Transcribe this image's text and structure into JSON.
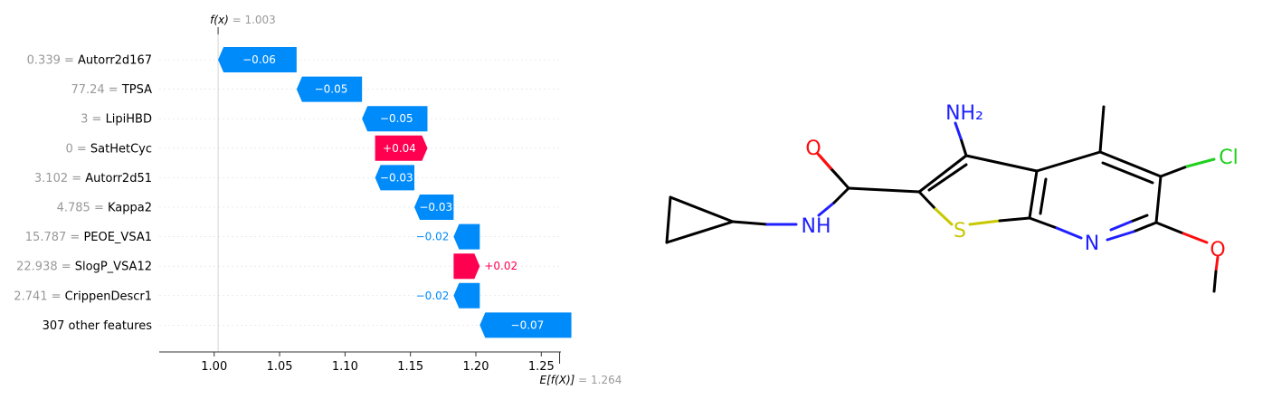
{
  "chart_data": {
    "type": "waterfall",
    "title": "",
    "fx_label": "f(x)",
    "fx_value": "1.003",
    "fx_full": "f(x) = 1.003",
    "base_label": "E[f(X)]",
    "base_value": "1.264",
    "base_full": "E[f(X)] = 1.264",
    "fx": 1.003,
    "base": 1.264,
    "xlim": [
      0.958,
      1.265
    ],
    "xticks": [
      1.0,
      1.05,
      1.1,
      1.15,
      1.2,
      1.25
    ],
    "xtick_labels": [
      "1.00",
      "1.05",
      "1.10",
      "1.15",
      "1.20",
      "1.25"
    ],
    "features": [
      {
        "value": "0.339",
        "name": "Autorr2d167",
        "row_label": "0.339 = Autorr2d167",
        "shap": -0.06,
        "label": "−0.06"
      },
      {
        "value": "77.24",
        "name": "TPSA",
        "row_label": "77.24 = TPSA",
        "shap": -0.05,
        "label": "−0.05"
      },
      {
        "value": "3",
        "name": "LipiHBD",
        "row_label": "3 = LipiHBD",
        "shap": -0.05,
        "label": "−0.05"
      },
      {
        "value": "0",
        "name": "SatHetCyc",
        "row_label": "0 = SatHetCyc",
        "shap": 0.04,
        "label": "+0.04"
      },
      {
        "value": "3.102",
        "name": "Autorr2d51",
        "row_label": "3.102 = Autorr2d51",
        "shap": -0.03,
        "label": "−0.03"
      },
      {
        "value": "4.785",
        "name": "Kappa2",
        "row_label": "4.785 = Kappa2",
        "shap": -0.03,
        "label": "−0.03"
      },
      {
        "value": "15.787",
        "name": "PEOE_VSA1",
        "row_label": "15.787 = PEOE_VSA1",
        "shap": -0.02,
        "label": "−0.02"
      },
      {
        "value": "22.938",
        "name": "SlogP_VSA12",
        "row_label": "22.938 = SlogP_VSA12",
        "shap": 0.02,
        "label": "+0.02"
      },
      {
        "value": "2.741",
        "name": "CrippenDescr1",
        "row_label": "2.741 = CrippenDescr1",
        "shap": -0.02,
        "label": "−0.02"
      },
      {
        "value": "",
        "name": "307 other features",
        "row_label": "307 other features",
        "shap": -0.07,
        "label": "−0.07"
      }
    ],
    "colors": {
      "negative": "#008bfb",
      "positive": "#ff0051",
      "axis": "#333333",
      "muted": "#999999",
      "grid": "#dddddd"
    }
  },
  "molecule": {
    "atom_labels": {
      "nh2": "NH₂",
      "o_carbonyl": "O",
      "nh": "NH",
      "s": "S",
      "n": "N",
      "cl": "Cl",
      "o_methoxy": "O"
    },
    "colors": {
      "N": "#2020ff",
      "O": "#ff0d0d",
      "S": "#c8c800",
      "Cl": "#1fd01f",
      "C": "#000000"
    }
  }
}
